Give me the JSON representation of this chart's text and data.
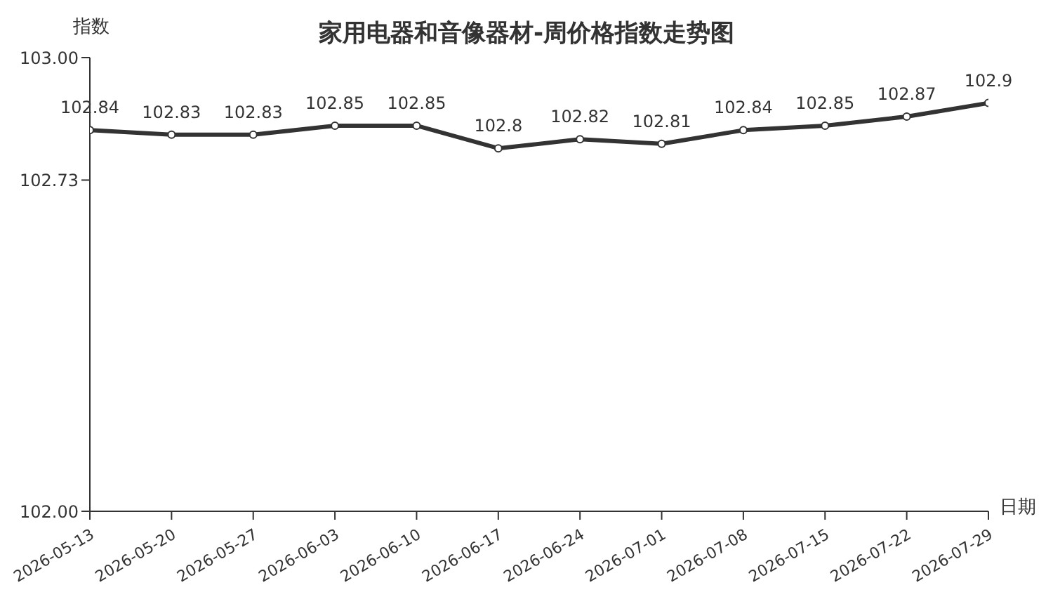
{
  "chart_data": {
    "type": "line",
    "title": "家用电器和音像器材-周价格指数走势图",
    "xlabel": "日期",
    "ylabel": "指数",
    "categories": [
      "2026-05-13",
      "2026-05-20",
      "2026-05-27",
      "2026-06-03",
      "2026-06-10",
      "2026-06-17",
      "2026-06-24",
      "2026-07-01",
      "2026-07-08",
      "2026-07-15",
      "2026-07-22",
      "2026-07-29"
    ],
    "series": [
      {
        "color": "#333333",
        "values": [
          102.84,
          102.83,
          102.83,
          102.85,
          102.85,
          102.8,
          102.82,
          102.81,
          102.84,
          102.85,
          102.87,
          102.9
        ]
      }
    ],
    "ylim": [
      102,
      103
    ],
    "yticks": [
      {
        "value": 102,
        "label": "102.00"
      },
      102.73,
      {
        "value": 103,
        "label": "103.00"
      }
    ],
    "data_labels": true,
    "grid": false,
    "marker": "circle",
    "line_style": "solid"
  }
}
